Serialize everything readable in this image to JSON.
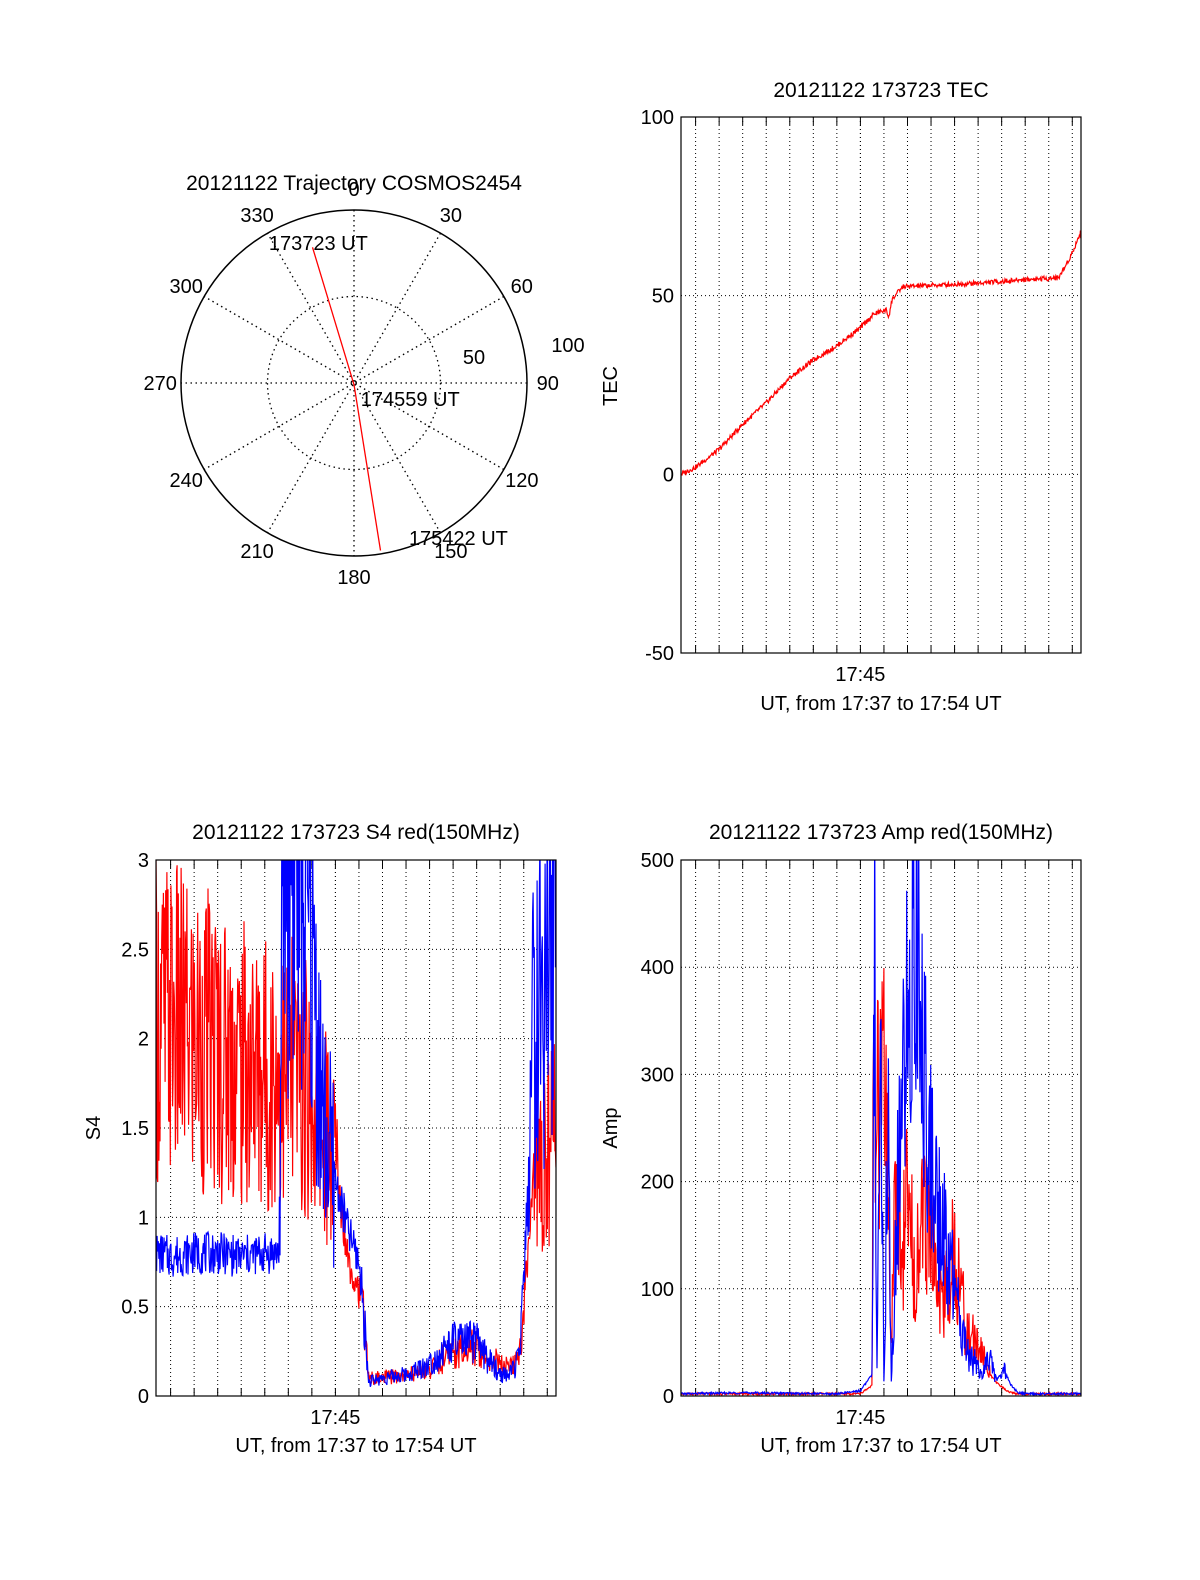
{
  "colors": {
    "red_series": "#ff0000",
    "blue_series": "#0000ff",
    "axis": "#000000",
    "grid": "#000000"
  },
  "chart_data": [
    {
      "type": "polar",
      "title": "20121122 Trajectory COSMOS2454",
      "angle_labels": [
        "0",
        "30",
        "60",
        "90",
        "120",
        "150",
        "180",
        "210",
        "240",
        "270",
        "300",
        "330"
      ],
      "radius_labels": [
        "50",
        "100"
      ],
      "series": [
        {
          "color": "#ff0000",
          "points": [
            {
              "az": 343,
              "r": 82
            },
            {
              "az": 180,
              "r": 1
            },
            {
              "az": 171,
              "r": 98
            }
          ]
        }
      ],
      "annotations": [
        {
          "text": "173723 UT",
          "az": 346,
          "r": 84
        },
        {
          "text": "174559 UT",
          "az": 105,
          "r": 16
        },
        {
          "text": "175422 UT",
          "az": 161,
          "r": 94
        }
      ]
    },
    {
      "type": "line",
      "title": "20121122 173723 TEC",
      "xlabel": "UT, from 17:37 to 17:54 UT",
      "ylabel": "TEC",
      "x_tick_labels": [
        {
          "label": "17:45",
          "minute": 45
        }
      ],
      "xlim_minutes": [
        37.38,
        54.37
      ],
      "ylim": [
        -50,
        100
      ],
      "y_ticks": [
        -50,
        0,
        50,
        100
      ],
      "grid": true,
      "series": [
        {
          "color": "#ff0000",
          "x_minutes": [
            37.38,
            38.0,
            39.0,
            40.0,
            41.0,
            42.0,
            43.0,
            44.0,
            45.0,
            45.6,
            46.1,
            46.2,
            46.35,
            46.6,
            46.8,
            50.0,
            52.0,
            53.4,
            53.6,
            54.0,
            54.37
          ],
          "values": [
            0,
            2,
            7,
            14,
            20,
            27,
            32,
            36,
            41,
            45,
            46,
            44,
            49,
            51,
            52.5,
            53.5,
            54.5,
            55,
            57,
            62,
            68
          ]
        }
      ]
    },
    {
      "type": "line",
      "title": "20121122 173723 S4 red(150MHz)",
      "xlabel": "UT, from 17:37 to 17:54 UT",
      "ylabel": "S4",
      "x_tick_labels": [
        {
          "label": "17:45",
          "minute": 45
        }
      ],
      "xlim_minutes": [
        37.38,
        54.37
      ],
      "ylim": [
        0,
        3
      ],
      "y_ticks": [
        0,
        0.5,
        1,
        1.5,
        2,
        2.5,
        3
      ],
      "grid": true,
      "series": [
        {
          "color": "#ff0000",
          "x_minutes": [
            37.4,
            38.0,
            39.0,
            40.0,
            41.0,
            42.0,
            43.0,
            43.5,
            44.0,
            44.5,
            45.0,
            45.3,
            45.6,
            46.0,
            46.2,
            46.4,
            47.0,
            48.0,
            49.0,
            50.0,
            51.0,
            51.5,
            52.0,
            52.4,
            52.8,
            53.0,
            53.4,
            54.0,
            54.37
          ],
          "values": [
            2.1,
            2.1,
            2.0,
            1.95,
            1.85,
            1.8,
            1.8,
            1.75,
            1.65,
            1.5,
            1.3,
            1.0,
            0.75,
            0.6,
            0.5,
            0.1,
            0.1,
            0.12,
            0.15,
            0.25,
            0.28,
            0.22,
            0.18,
            0.15,
            0.2,
            0.5,
            1.2,
            1.4,
            1.6
          ]
        },
        {
          "color": "#0000ff",
          "x_minutes": [
            37.4,
            38.0,
            39.0,
            40.0,
            41.0,
            42.0,
            42.6,
            42.8,
            43.0,
            43.5,
            44.0,
            44.5,
            45.0,
            45.3,
            45.6,
            46.0,
            46.2,
            46.4,
            47.0,
            48.0,
            49.0,
            50.0,
            51.0,
            51.5,
            52.0,
            52.4,
            52.8,
            53.0,
            53.4,
            54.0,
            54.37
          ],
          "values": [
            0.8,
            0.78,
            0.8,
            0.8,
            0.78,
            0.8,
            0.8,
            3.0,
            3.0,
            3.0,
            2.5,
            1.5,
            1.2,
            1.05,
            0.9,
            0.75,
            0.5,
            0.08,
            0.1,
            0.12,
            0.18,
            0.3,
            0.3,
            0.2,
            0.12,
            0.12,
            0.2,
            0.6,
            2.0,
            2.4,
            2.6
          ]
        }
      ]
    },
    {
      "type": "line",
      "title": "20121122 173723 Amp red(150MHz)",
      "xlabel": "UT, from 17:37 to 17:54 UT",
      "ylabel": "Amp",
      "x_tick_labels": [
        {
          "label": "17:45",
          "minute": 45
        }
      ],
      "xlim_minutes": [
        37.38,
        54.37
      ],
      "ylim": [
        0,
        500
      ],
      "y_ticks": [
        0,
        100,
        200,
        300,
        400,
        500
      ],
      "grid": true,
      "series": [
        {
          "color": "#ff0000",
          "x_minutes": [
            37.38,
            44.0,
            45.0,
            45.5,
            45.55,
            45.7,
            45.9,
            46.1,
            46.3,
            46.5,
            46.8,
            47.0,
            47.3,
            47.6,
            48.0,
            48.3,
            48.6,
            49.0,
            49.5,
            49.9,
            50.3,
            50.5,
            50.8,
            51.2,
            51.6,
            52.0,
            54.37
          ],
          "values": [
            2,
            2,
            2,
            10,
            280,
            250,
            290,
            260,
            30,
            200,
            140,
            180,
            120,
            160,
            150,
            100,
            90,
            140,
            60,
            50,
            35,
            20,
            12,
            5,
            2,
            2,
            2
          ]
        },
        {
          "color": "#0000ff",
          "x_minutes": [
            37.38,
            40.0,
            44.0,
            45.0,
            45.5,
            45.6,
            45.7,
            45.85,
            46.0,
            46.2,
            46.3,
            46.6,
            46.8,
            47.0,
            47.25,
            47.5,
            47.75,
            48.0,
            48.3,
            48.6,
            49.0,
            49.3,
            49.6,
            49.9,
            50.2,
            50.5,
            50.8,
            51.1,
            51.4,
            51.7,
            52.0,
            54.37
          ],
          "values": [
            2,
            3,
            2,
            5,
            20,
            445,
            30,
            380,
            5,
            320,
            5,
            200,
            260,
            360,
            415,
            390,
            300,
            220,
            180,
            140,
            100,
            60,
            40,
            30,
            20,
            35,
            15,
            25,
            10,
            3,
            2,
            2
          ]
        }
      ]
    }
  ]
}
